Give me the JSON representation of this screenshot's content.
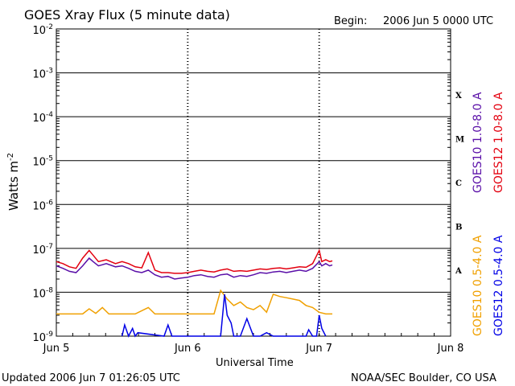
{
  "chart_data": {
    "type": "line",
    "title": "GOES Xray Flux (5 minute data)",
    "begin_label": "Begin:",
    "begin_value": "2006 Jun 5 0000 UTC",
    "xlabel": "Universal Time",
    "ylabel_text": "Watts m",
    "ylabel_exp": "-2",
    "yscale": "log",
    "ylim": [
      1e-09,
      0.01
    ],
    "xlim": [
      0,
      3
    ],
    "grid": true,
    "y_ticks": [
      {
        "base": "10",
        "exp": "-2",
        "value": 0.01
      },
      {
        "base": "10",
        "exp": "-3",
        "value": 0.001
      },
      {
        "base": "10",
        "exp": "-4",
        "value": 0.0001
      },
      {
        "base": "10",
        "exp": "-5",
        "value": 1e-05
      },
      {
        "base": "10",
        "exp": "-6",
        "value": 1e-06
      },
      {
        "base": "10",
        "exp": "-7",
        "value": 1e-07
      },
      {
        "base": "10",
        "exp": "-8",
        "value": 1e-08
      },
      {
        "base": "10",
        "exp": "-9",
        "value": 1e-09
      }
    ],
    "x_ticks": [
      {
        "label": "Jun 5",
        "value": 0
      },
      {
        "label": "Jun 6",
        "value": 1
      },
      {
        "label": "Jun 7",
        "value": 2
      },
      {
        "label": "Jun 8",
        "value": 3
      }
    ],
    "class_labels": [
      {
        "label": "X",
        "value": 0.000316
      },
      {
        "label": "M",
        "value": 3.16e-05
      },
      {
        "label": "C",
        "value": 3.16e-06
      },
      {
        "label": "B",
        "value": 3.16e-07
      },
      {
        "label": "A",
        "value": 3.16e-08
      }
    ],
    "series": [
      {
        "name": "GOES10 1.0-8.0 A",
        "color": "#5a0fa8",
        "x": [
          0,
          0.05,
          0.1,
          0.15,
          0.2,
          0.25,
          0.28,
          0.32,
          0.38,
          0.45,
          0.5,
          0.55,
          0.6,
          0.65,
          0.7,
          0.75,
          0.8,
          0.85,
          0.9,
          0.95,
          1.0,
          1.05,
          1.1,
          1.15,
          1.2,
          1.25,
          1.3,
          1.35,
          1.4,
          1.45,
          1.5,
          1.55,
          1.6,
          1.65,
          1.7,
          1.75,
          1.8,
          1.85,
          1.9,
          1.95,
          2.0,
          2.02,
          2.05,
          2.08,
          2.1
        ],
        "y": [
          4e-08,
          3.5e-08,
          3e-08,
          2.8e-08,
          4e-08,
          6e-08,
          5e-08,
          4e-08,
          4.5e-08,
          3.8e-08,
          4e-08,
          3.5e-08,
          3e-08,
          2.8e-08,
          3.2e-08,
          2.5e-08,
          2.2e-08,
          2.3e-08,
          2e-08,
          2.1e-08,
          2.2e-08,
          2.4e-08,
          2.5e-08,
          2.3e-08,
          2.2e-08,
          2.5e-08,
          2.6e-08,
          2.2e-08,
          2.4e-08,
          2.3e-08,
          2.5e-08,
          2.8e-08,
          2.7e-08,
          2.9e-08,
          3e-08,
          2.8e-08,
          3e-08,
          3.2e-08,
          3e-08,
          3.5e-08,
          5e-08,
          4e-08,
          4.5e-08,
          4e-08,
          4.2e-08
        ]
      },
      {
        "name": "GOES12 1.0-8.0 A",
        "color": "#e3000f",
        "x": [
          0,
          0.05,
          0.1,
          0.15,
          0.2,
          0.25,
          0.28,
          0.32,
          0.38,
          0.45,
          0.5,
          0.55,
          0.6,
          0.65,
          0.7,
          0.75,
          0.8,
          0.85,
          0.9,
          0.95,
          1.0,
          1.05,
          1.1,
          1.15,
          1.2,
          1.25,
          1.3,
          1.35,
          1.4,
          1.45,
          1.5,
          1.55,
          1.6,
          1.65,
          1.7,
          1.75,
          1.8,
          1.85,
          1.9,
          1.95,
          2.0,
          2.02,
          2.05,
          2.08,
          2.1
        ],
        "y": [
          5e-08,
          4.5e-08,
          3.8e-08,
          3.5e-08,
          6e-08,
          9e-08,
          7e-08,
          5e-08,
          5.5e-08,
          4.5e-08,
          5e-08,
          4.5e-08,
          3.8e-08,
          3.6e-08,
          8e-08,
          3.2e-08,
          2.8e-08,
          2.8e-08,
          2.7e-08,
          2.7e-08,
          2.8e-08,
          3e-08,
          3.2e-08,
          3e-08,
          2.9e-08,
          3.2e-08,
          3.4e-08,
          3e-08,
          3.1e-08,
          3e-08,
          3.2e-08,
          3.4e-08,
          3.3e-08,
          3.5e-08,
          3.6e-08,
          3.4e-08,
          3.6e-08,
          3.8e-08,
          3.7e-08,
          4.5e-08,
          9e-08,
          5e-08,
          5.5e-08,
          5e-08,
          5.2e-08
        ]
      },
      {
        "name": "GOES10 0.5-4.0 A",
        "color": "#f0a000",
        "x": [
          0,
          0.2,
          0.25,
          0.3,
          0.35,
          0.4,
          0.6,
          0.7,
          0.75,
          0.8,
          1.0,
          1.2,
          1.25,
          1.3,
          1.35,
          1.4,
          1.45,
          1.5,
          1.55,
          1.6,
          1.65,
          1.7,
          1.75,
          1.8,
          1.85,
          1.9,
          1.95,
          2.0,
          2.05,
          2.1
        ],
        "y": [
          3.2e-09,
          3.2e-09,
          4.2e-09,
          3.3e-09,
          4.5e-09,
          3.2e-09,
          3.2e-09,
          4.5e-09,
          3.2e-09,
          3.2e-09,
          3.2e-09,
          3.2e-09,
          1.1e-08,
          7e-09,
          5e-09,
          6e-09,
          4.5e-09,
          4e-09,
          5e-09,
          3.5e-09,
          9e-09,
          8e-09,
          7.5e-09,
          7e-09,
          6.5e-09,
          5e-09,
          4.5e-09,
          3.5e-09,
          3.2e-09,
          3.2e-09
        ]
      },
      {
        "name": "GOES12 0.5-4.0 A",
        "color": "#0000e6",
        "x": [
          0.5,
          0.52,
          0.55,
          0.58,
          0.6,
          0.62,
          0.82,
          0.85,
          0.88,
          1.25,
          1.28,
          1.3,
          1.33,
          1.35,
          1.4,
          1.45,
          1.5,
          1.55,
          1.6,
          1.65,
          1.9,
          1.92,
          1.95,
          1.98,
          2.0,
          2.02,
          2.05
        ],
        "y": [
          1e-09,
          1.8e-09,
          1e-09,
          1.5e-09,
          1e-09,
          1.2e-09,
          1e-09,
          1.8e-09,
          1e-09,
          1e-09,
          9e-09,
          3e-09,
          2e-09,
          1e-09,
          1e-09,
          2.5e-09,
          1e-09,
          1e-09,
          1.2e-09,
          1e-09,
          1e-09,
          1.4e-09,
          1e-09,
          1e-09,
          3e-09,
          1.5e-09,
          1e-09
        ]
      }
    ],
    "legend_placement": "right"
  },
  "footer": {
    "updated": "Updated 2006 Jun  7 01:26:05 UTC",
    "source": "NOAA/SEC Boulder, CO USA"
  }
}
